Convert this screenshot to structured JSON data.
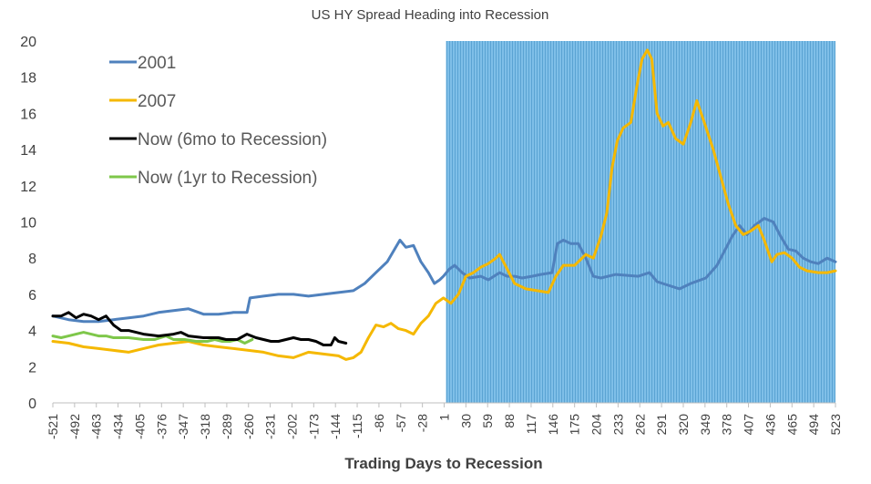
{
  "chart_data": {
    "type": "line",
    "title": "US HY Spread Heading into Recession",
    "xlabel": "Trading Days to Recession",
    "ylabel": "",
    "xlim": [
      -521,
      523
    ],
    "ylim": [
      0,
      20
    ],
    "yticks": [
      0,
      2,
      4,
      6,
      8,
      10,
      12,
      14,
      16,
      18,
      20
    ],
    "xticks": [
      "-521",
      "-492",
      "-463",
      "-434",
      "-405",
      "-376",
      "-347",
      "-318",
      "-289",
      "-260",
      "-231",
      "-202",
      "-173",
      "-144",
      "-115",
      "-86",
      "-57",
      "-28",
      "1",
      "30",
      "59",
      "88",
      "117",
      "146",
      "175",
      "204",
      "233",
      "262",
      "291",
      "320",
      "349",
      "378",
      "407",
      "436",
      "465",
      "494",
      "523"
    ],
    "recession_shade": {
      "start": 1,
      "end": 523,
      "color": "#7fbfe8"
    },
    "grid": false,
    "legend_position": "top-left",
    "series": [
      {
        "name": "2001",
        "color": "#4f81bd",
        "points": [
          [
            -521,
            4.8
          ],
          [
            -500,
            4.6
          ],
          [
            -480,
            4.5
          ],
          [
            -460,
            4.5
          ],
          [
            -440,
            4.6
          ],
          [
            -420,
            4.7
          ],
          [
            -400,
            4.8
          ],
          [
            -380,
            5.0
          ],
          [
            -360,
            5.1
          ],
          [
            -340,
            5.2
          ],
          [
            -320,
            4.9
          ],
          [
            -300,
            4.9
          ],
          [
            -280,
            5.0
          ],
          [
            -262,
            5.0
          ],
          [
            -258,
            5.8
          ],
          [
            -240,
            5.9
          ],
          [
            -220,
            6.0
          ],
          [
            -200,
            6.0
          ],
          [
            -180,
            5.9
          ],
          [
            -160,
            6.0
          ],
          [
            -140,
            6.1
          ],
          [
            -120,
            6.2
          ],
          [
            -105,
            6.6
          ],
          [
            -90,
            7.2
          ],
          [
            -75,
            7.8
          ],
          [
            -65,
            8.5
          ],
          [
            -58,
            9.0
          ],
          [
            -50,
            8.6
          ],
          [
            -40,
            8.7
          ],
          [
            -30,
            7.8
          ],
          [
            -20,
            7.2
          ],
          [
            -12,
            6.6
          ],
          [
            -5,
            6.8
          ],
          [
            0,
            7.0
          ],
          [
            8,
            7.4
          ],
          [
            15,
            7.6
          ],
          [
            25,
            7.2
          ],
          [
            35,
            6.9
          ],
          [
            50,
            7.0
          ],
          [
            60,
            6.8
          ],
          [
            75,
            7.2
          ],
          [
            85,
            7.0
          ],
          [
            95,
            7.0
          ],
          [
            105,
            6.9
          ],
          [
            118,
            7.0
          ],
          [
            130,
            7.1
          ],
          [
            145,
            7.2
          ],
          [
            152,
            8.8
          ],
          [
            160,
            9.0
          ],
          [
            170,
            8.8
          ],
          [
            180,
            8.8
          ],
          [
            190,
            8.0
          ],
          [
            200,
            7.0
          ],
          [
            210,
            6.9
          ],
          [
            230,
            7.1
          ],
          [
            260,
            7.0
          ],
          [
            275,
            7.2
          ],
          [
            285,
            6.7
          ],
          [
            300,
            6.5
          ],
          [
            315,
            6.3
          ],
          [
            330,
            6.6
          ],
          [
            350,
            6.9
          ],
          [
            365,
            7.6
          ],
          [
            375,
            8.4
          ],
          [
            385,
            9.2
          ],
          [
            395,
            9.8
          ],
          [
            405,
            9.3
          ],
          [
            415,
            9.8
          ],
          [
            428,
            10.2
          ],
          [
            440,
            10.0
          ],
          [
            450,
            9.2
          ],
          [
            460,
            8.5
          ],
          [
            470,
            8.4
          ],
          [
            480,
            8.0
          ],
          [
            490,
            7.8
          ],
          [
            500,
            7.7
          ],
          [
            512,
            8.0
          ],
          [
            523,
            7.8
          ]
        ]
      },
      {
        "name": "2007",
        "color": "#f5b800",
        "points": [
          [
            -521,
            3.4
          ],
          [
            -500,
            3.3
          ],
          [
            -480,
            3.1
          ],
          [
            -460,
            3.0
          ],
          [
            -440,
            2.9
          ],
          [
            -420,
            2.8
          ],
          [
            -400,
            3.0
          ],
          [
            -380,
            3.2
          ],
          [
            -360,
            3.3
          ],
          [
            -340,
            3.4
          ],
          [
            -320,
            3.2
          ],
          [
            -300,
            3.1
          ],
          [
            -280,
            3.0
          ],
          [
            -260,
            2.9
          ],
          [
            -240,
            2.8
          ],
          [
            -220,
            2.6
          ],
          [
            -200,
            2.5
          ],
          [
            -180,
            2.8
          ],
          [
            -160,
            2.7
          ],
          [
            -140,
            2.6
          ],
          [
            -130,
            2.4
          ],
          [
            -120,
            2.5
          ],
          [
            -110,
            2.8
          ],
          [
            -100,
            3.6
          ],
          [
            -90,
            4.3
          ],
          [
            -80,
            4.2
          ],
          [
            -70,
            4.4
          ],
          [
            -60,
            4.1
          ],
          [
            -50,
            4.0
          ],
          [
            -40,
            3.8
          ],
          [
            -30,
            4.4
          ],
          [
            -20,
            4.8
          ],
          [
            -10,
            5.5
          ],
          [
            0,
            5.8
          ],
          [
            10,
            5.5
          ],
          [
            20,
            6.0
          ],
          [
            30,
            7.0
          ],
          [
            40,
            7.2
          ],
          [
            50,
            7.5
          ],
          [
            60,
            7.7
          ],
          [
            70,
            8.0
          ],
          [
            75,
            8.2
          ],
          [
            85,
            7.4
          ],
          [
            95,
            6.6
          ],
          [
            110,
            6.3
          ],
          [
            125,
            6.2
          ],
          [
            140,
            6.1
          ],
          [
            150,
            7.0
          ],
          [
            160,
            7.6
          ],
          [
            175,
            7.6
          ],
          [
            190,
            8.2
          ],
          [
            200,
            8.0
          ],
          [
            210,
            9.2
          ],
          [
            218,
            10.5
          ],
          [
            225,
            13.0
          ],
          [
            232,
            14.5
          ],
          [
            240,
            15.2
          ],
          [
            250,
            15.5
          ],
          [
            258,
            17.5
          ],
          [
            265,
            19.0
          ],
          [
            272,
            19.5
          ],
          [
            278,
            19.0
          ],
          [
            285,
            16.0
          ],
          [
            293,
            15.3
          ],
          [
            300,
            15.5
          ],
          [
            310,
            14.6
          ],
          [
            320,
            14.3
          ],
          [
            330,
            15.5
          ],
          [
            338,
            16.7
          ],
          [
            348,
            15.5
          ],
          [
            360,
            14.0
          ],
          [
            370,
            12.5
          ],
          [
            380,
            11.0
          ],
          [
            390,
            9.8
          ],
          [
            400,
            9.3
          ],
          [
            410,
            9.5
          ],
          [
            420,
            9.8
          ],
          [
            428,
            9.0
          ],
          [
            438,
            7.8
          ],
          [
            445,
            8.2
          ],
          [
            455,
            8.3
          ],
          [
            465,
            8.0
          ],
          [
            475,
            7.5
          ],
          [
            485,
            7.3
          ],
          [
            500,
            7.2
          ],
          [
            512,
            7.2
          ],
          [
            523,
            7.3
          ]
        ]
      },
      {
        "name": "Now (6mo to Recession)",
        "color": "#000000",
        "points": [
          [
            -521,
            4.8
          ],
          [
            -510,
            4.8
          ],
          [
            -500,
            5.0
          ],
          [
            -490,
            4.7
          ],
          [
            -480,
            4.9
          ],
          [
            -470,
            4.8
          ],
          [
            -460,
            4.6
          ],
          [
            -450,
            4.8
          ],
          [
            -440,
            4.3
          ],
          [
            -430,
            4.0
          ],
          [
            -420,
            4.0
          ],
          [
            -400,
            3.8
          ],
          [
            -380,
            3.7
          ],
          [
            -360,
            3.8
          ],
          [
            -350,
            3.9
          ],
          [
            -340,
            3.7
          ],
          [
            -320,
            3.6
          ],
          [
            -300,
            3.6
          ],
          [
            -290,
            3.5
          ],
          [
            -275,
            3.5
          ],
          [
            -262,
            3.8
          ],
          [
            -250,
            3.6
          ],
          [
            -240,
            3.5
          ],
          [
            -230,
            3.4
          ],
          [
            -220,
            3.4
          ],
          [
            -210,
            3.5
          ],
          [
            -200,
            3.6
          ],
          [
            -190,
            3.5
          ],
          [
            -180,
            3.5
          ],
          [
            -170,
            3.4
          ],
          [
            -160,
            3.2
          ],
          [
            -150,
            3.2
          ],
          [
            -145,
            3.6
          ],
          [
            -140,
            3.4
          ],
          [
            -130,
            3.3
          ]
        ]
      },
      {
        "name": "Now (1yr to Recession)",
        "color": "#7ec74a",
        "points": [
          [
            -521,
            3.7
          ],
          [
            -510,
            3.6
          ],
          [
            -500,
            3.7
          ],
          [
            -490,
            3.8
          ],
          [
            -480,
            3.9
          ],
          [
            -470,
            3.8
          ],
          [
            -460,
            3.7
          ],
          [
            -450,
            3.7
          ],
          [
            -440,
            3.6
          ],
          [
            -420,
            3.6
          ],
          [
            -400,
            3.5
          ],
          [
            -385,
            3.5
          ],
          [
            -370,
            3.7
          ],
          [
            -360,
            3.5
          ],
          [
            -345,
            3.5
          ],
          [
            -330,
            3.4
          ],
          [
            -315,
            3.4
          ],
          [
            -305,
            3.5
          ],
          [
            -295,
            3.4
          ],
          [
            -285,
            3.4
          ],
          [
            -275,
            3.5
          ],
          [
            -265,
            3.3
          ],
          [
            -255,
            3.5
          ]
        ]
      }
    ]
  }
}
